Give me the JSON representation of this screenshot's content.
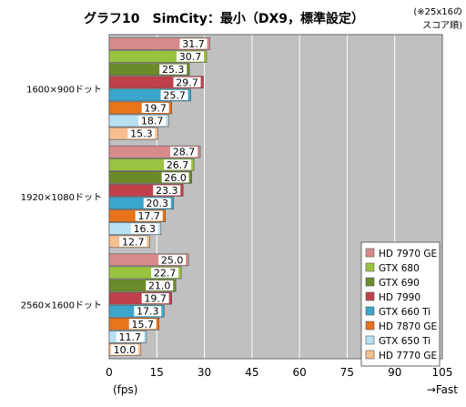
{
  "title": "グラフ10　SimCity：最小（DX9，標準設定）",
  "note_line1": "(※25x16の",
  "note_line2": "スコア順)",
  "colors": {
    "plot_bg": "#c0c0c0",
    "grid": "#ffffff",
    "label_bg": "#ffffff"
  },
  "chart_data": {
    "type": "bar",
    "orientation": "horizontal",
    "categories": [
      "1600×900ドット",
      "1920×1080ドット",
      "2560×1600ドット"
    ],
    "series": [
      {
        "name": "HD 7970 GE",
        "color": "#d98a8a",
        "values": [
          31.7,
          28.7,
          25.0
        ]
      },
      {
        "name": "GTX 680",
        "color": "#99c43f",
        "values": [
          30.7,
          26.7,
          22.7
        ]
      },
      {
        "name": "GTX 690",
        "color": "#6b8b2b",
        "values": [
          25.3,
          26.0,
          21.0
        ]
      },
      {
        "name": "HD 7990",
        "color": "#c0404a",
        "values": [
          29.7,
          23.3,
          19.7
        ]
      },
      {
        "name": "GTX 660 Ti",
        "color": "#3aa6cc",
        "values": [
          25.7,
          20.3,
          17.3
        ]
      },
      {
        "name": "HD 7870 GE",
        "color": "#e8731a",
        "values": [
          19.7,
          17.7,
          15.7
        ]
      },
      {
        "name": "GTX 650 Ti",
        "color": "#b8e1f2",
        "values": [
          18.7,
          16.3,
          11.7
        ]
      },
      {
        "name": "HD 7770 GE",
        "color": "#f7be8e",
        "values": [
          15.3,
          12.7,
          10.0
        ]
      }
    ],
    "xlim": [
      0,
      105
    ],
    "xticks": [
      "0",
      "15",
      "30",
      "45",
      "60",
      "75",
      "90",
      "105"
    ],
    "xlabel": "(fps)",
    "xlabel_right": "→Fast",
    "grid": true,
    "legend_position": "bottom-right"
  }
}
